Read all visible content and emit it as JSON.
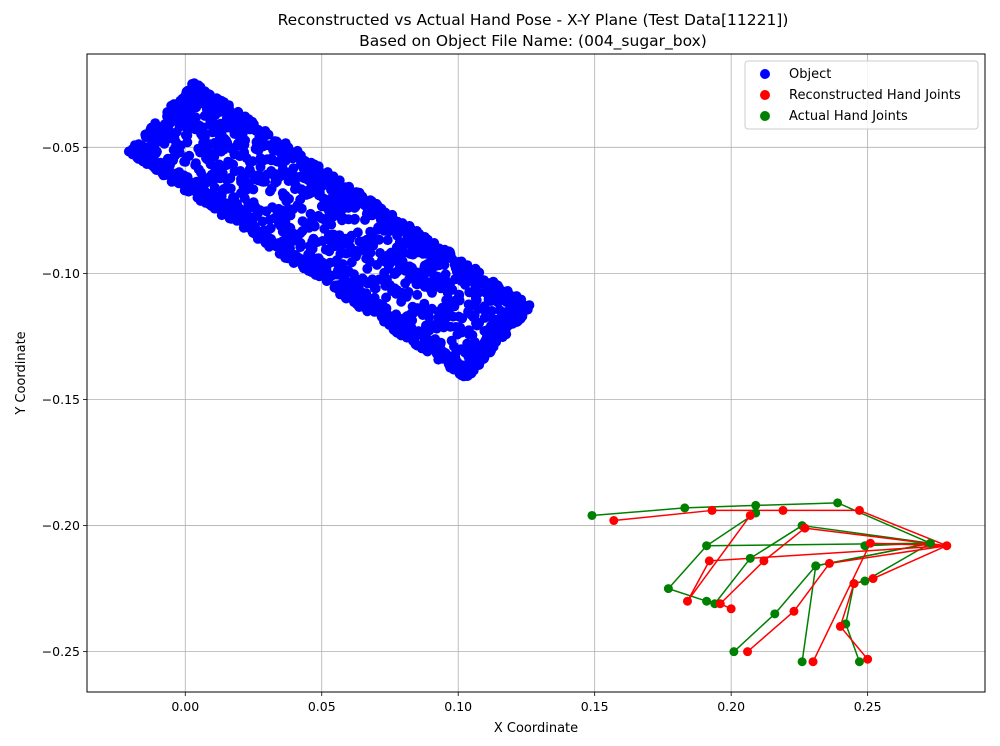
{
  "chart_data": {
    "type": "scatter",
    "title": "Reconstructed vs Actual Hand Pose - X-Y Plane (Test Data[11221])",
    "subtitle": "Based on Object File Name: (004_sugar_box)",
    "xlabel": "X Coordinate",
    "ylabel": "Y Coordinate",
    "xlim": [
      -0.036,
      0.293
    ],
    "ylim": [
      -0.266,
      -0.013
    ],
    "xticks": [
      0.0,
      0.05,
      0.1,
      0.15,
      0.2,
      0.25
    ],
    "xtick_labels": [
      "0.00",
      "0.05",
      "0.10",
      "0.15",
      "0.20",
      "0.25"
    ],
    "yticks": [
      -0.05,
      -0.1,
      -0.15,
      -0.2,
      -0.25
    ],
    "ytick_labels": [
      "−0.05",
      "−0.10",
      "−0.15",
      "−0.20",
      "−0.25"
    ],
    "grid": true,
    "legend_position": "top-right",
    "object_box": {
      "corners": [
        [
          0.003,
          -0.024
        ],
        [
          -0.021,
          -0.052
        ],
        [
          0.103,
          -0.142
        ],
        [
          0.127,
          -0.113
        ]
      ],
      "description_points": 1700
    },
    "series": [
      {
        "name": "Object",
        "color": "#0000ff",
        "kind": "object"
      },
      {
        "name": "Reconstructed Hand Joints",
        "color": "#ff0000",
        "joints": [
          [
            0.279,
            -0.208
          ],
          [
            0.252,
            -0.221
          ],
          [
            0.245,
            -0.223
          ],
          [
            0.24,
            -0.24
          ],
          [
            0.25,
            -0.253
          ],
          [
            0.236,
            -0.215
          ],
          [
            0.223,
            -0.234
          ],
          [
            0.206,
            -0.25
          ],
          [
            0.227,
            -0.201
          ],
          [
            0.212,
            -0.214
          ],
          [
            0.196,
            -0.231
          ],
          [
            0.2,
            -0.233
          ],
          [
            0.251,
            -0.207
          ],
          [
            0.23,
            -0.254
          ],
          [
            0.192,
            -0.214
          ],
          [
            0.184,
            -0.23
          ],
          [
            0.247,
            -0.194
          ],
          [
            0.219,
            -0.194
          ],
          [
            0.193,
            -0.194
          ],
          [
            0.157,
            -0.198
          ],
          [
            0.207,
            -0.196
          ]
        ],
        "edges": [
          [
            0,
            1
          ],
          [
            1,
            2
          ],
          [
            2,
            3
          ],
          [
            3,
            4
          ],
          [
            0,
            5
          ],
          [
            5,
            6
          ],
          [
            6,
            7
          ],
          [
            0,
            8
          ],
          [
            8,
            9
          ],
          [
            9,
            10
          ],
          [
            10,
            11
          ],
          [
            0,
            12
          ],
          [
            12,
            13
          ],
          [
            0,
            16
          ],
          [
            16,
            17
          ],
          [
            17,
            18
          ],
          [
            18,
            19
          ],
          [
            0,
            14
          ],
          [
            14,
            15
          ],
          [
            15,
            20
          ]
        ]
      },
      {
        "name": "Actual Hand Joints",
        "color": "#008000",
        "joints": [
          [
            0.273,
            -0.207
          ],
          [
            0.249,
            -0.208
          ],
          [
            0.249,
            -0.222
          ],
          [
            0.245,
            -0.223
          ],
          [
            0.242,
            -0.239
          ],
          [
            0.247,
            -0.254
          ],
          [
            0.231,
            -0.216
          ],
          [
            0.216,
            -0.235
          ],
          [
            0.201,
            -0.25
          ],
          [
            0.226,
            -0.2
          ],
          [
            0.207,
            -0.213
          ],
          [
            0.194,
            -0.231
          ],
          [
            0.231,
            -0.216
          ],
          [
            0.226,
            -0.254
          ],
          [
            0.191,
            -0.208
          ],
          [
            0.177,
            -0.225
          ],
          [
            0.191,
            -0.23
          ],
          [
            0.239,
            -0.191
          ],
          [
            0.209,
            -0.192
          ],
          [
            0.183,
            -0.193
          ],
          [
            0.149,
            -0.196
          ],
          [
            0.209,
            -0.195
          ]
        ],
        "edges": [
          [
            0,
            1
          ],
          [
            0,
            2
          ],
          [
            2,
            3
          ],
          [
            3,
            4
          ],
          [
            4,
            5
          ],
          [
            0,
            6
          ],
          [
            6,
            7
          ],
          [
            7,
            8
          ],
          [
            0,
            9
          ],
          [
            9,
            10
          ],
          [
            10,
            11
          ],
          [
            11,
            16
          ],
          [
            0,
            12
          ],
          [
            12,
            13
          ],
          [
            0,
            17
          ],
          [
            17,
            18
          ],
          [
            18,
            19
          ],
          [
            19,
            20
          ],
          [
            0,
            14
          ],
          [
            14,
            15
          ],
          [
            15,
            16
          ],
          [
            14,
            21
          ]
        ]
      }
    ]
  }
}
